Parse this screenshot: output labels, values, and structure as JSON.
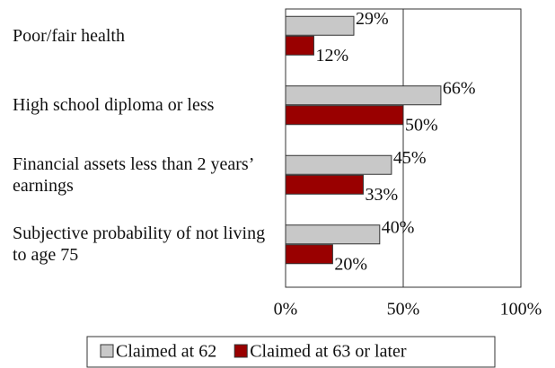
{
  "chart_data": {
    "type": "bar",
    "orientation": "horizontal",
    "categories": [
      "Poor/fair health",
      "High school diploma or less",
      "Financial assets less than 2 years’ earnings",
      "Subjective probability of not living to age 75"
    ],
    "series": [
      {
        "name": "Claimed at 62",
        "color": "#c8c8c8",
        "values": [
          29,
          66,
          45,
          40
        ],
        "value_labels": [
          "29%",
          "66%",
          "45%",
          "40%"
        ]
      },
      {
        "name": "Claimed at 63 or later",
        "color": "#990000",
        "values": [
          12,
          50,
          33,
          20
        ],
        "value_labels": [
          "12%",
          "50%",
          "33%",
          "20%"
        ]
      }
    ],
    "xlim": [
      0,
      100
    ],
    "xticks": [
      {
        "value": 0,
        "label": "0%"
      },
      {
        "value": 50,
        "label": "50%"
      },
      {
        "value": 100,
        "label": "100%"
      }
    ],
    "grid": true,
    "legend": "bottom"
  }
}
